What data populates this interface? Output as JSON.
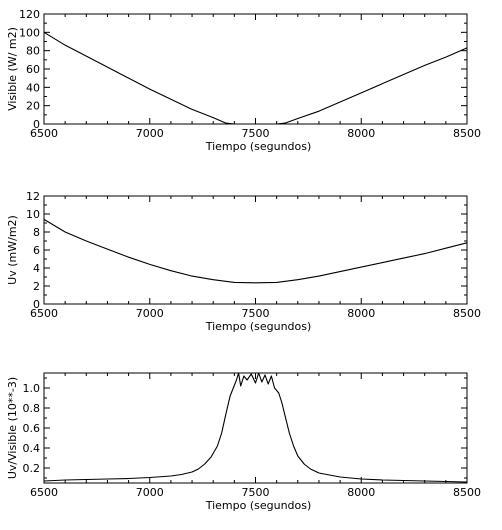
{
  "chart_data": [
    {
      "type": "line",
      "xlabel": "Tiempo (segundos)",
      "ylabel": "Visible (W/ m2)",
      "xlim": [
        6500,
        8500
      ],
      "ylim": [
        0,
        120
      ],
      "x_ticks": [
        "6500",
        "7000",
        "7500",
        "8000",
        "8500"
      ],
      "y_ticks": [
        "0",
        "20",
        "40",
        "60",
        "80",
        "100",
        "120"
      ],
      "series": [
        {
          "x": [
            6500,
            6600,
            6700,
            6800,
            6900,
            7000,
            7100,
            7200,
            7300,
            7360,
            7400,
            7500,
            7600,
            7640,
            7700,
            7800,
            7900,
            8000,
            8100,
            8200,
            8300,
            8400,
            8500
          ],
          "values": [
            100,
            86,
            74,
            62,
            50,
            38,
            27,
            16,
            7,
            1,
            0,
            0,
            0,
            1,
            6,
            14,
            24,
            34,
            44,
            54,
            64,
            73,
            83
          ]
        }
      ]
    },
    {
      "type": "line",
      "xlabel": "Tiempo (segundos)",
      "ylabel": "Uv (mW/m2)",
      "xlim": [
        6500,
        8500
      ],
      "ylim": [
        0,
        12
      ],
      "x_ticks": [
        "6500",
        "7000",
        "7500",
        "8000",
        "8500"
      ],
      "y_ticks": [
        "0",
        "2",
        "4",
        "6",
        "8",
        "10",
        "12"
      ],
      "series": [
        {
          "x": [
            6500,
            6600,
            6700,
            6800,
            6900,
            7000,
            7100,
            7200,
            7300,
            7400,
            7500,
            7600,
            7700,
            7800,
            7900,
            8000,
            8100,
            8200,
            8300,
            8400,
            8500
          ],
          "values": [
            9.4,
            8.0,
            7.0,
            6.1,
            5.2,
            4.4,
            3.7,
            3.1,
            2.7,
            2.4,
            2.35,
            2.4,
            2.7,
            3.1,
            3.6,
            4.1,
            4.6,
            5.1,
            5.6,
            6.2,
            6.8
          ]
        }
      ]
    },
    {
      "type": "line",
      "xlabel": "Tiempo (segundos)",
      "ylabel": "Uv/Visible (10**-3)",
      "xlim": [
        6500,
        8500
      ],
      "ylim": [
        0.05,
        1.15
      ],
      "x_ticks": [
        "6500",
        "7000",
        "7500",
        "8000",
        "8500"
      ],
      "y_ticks": [
        "0.2",
        "0.4",
        "0.6",
        "0.8",
        "1.0"
      ],
      "series": [
        {
          "x": [
            6500,
            6600,
            6700,
            6800,
            6900,
            7000,
            7100,
            7150,
            7200,
            7230,
            7260,
            7290,
            7320,
            7340,
            7360,
            7380,
            7395,
            7410,
            7420,
            7430,
            7445,
            7460,
            7480,
            7500,
            7515,
            7530,
            7545,
            7560,
            7575,
            7590,
            7610,
            7625,
            7640,
            7660,
            7680,
            7700,
            7730,
            7760,
            7800,
            7850,
            7900,
            8000,
            8100,
            8200,
            8300,
            8400,
            8500
          ],
          "values": [
            0.07,
            0.08,
            0.085,
            0.09,
            0.095,
            0.105,
            0.12,
            0.135,
            0.16,
            0.19,
            0.24,
            0.31,
            0.42,
            0.55,
            0.74,
            0.92,
            1.0,
            1.08,
            1.15,
            1.02,
            1.12,
            1.08,
            1.14,
            1.05,
            1.15,
            1.06,
            1.13,
            1.04,
            1.12,
            1.0,
            0.95,
            0.85,
            0.72,
            0.55,
            0.42,
            0.32,
            0.24,
            0.19,
            0.15,
            0.13,
            0.11,
            0.09,
            0.08,
            0.075,
            0.07,
            0.065,
            0.06
          ]
        }
      ]
    }
  ]
}
